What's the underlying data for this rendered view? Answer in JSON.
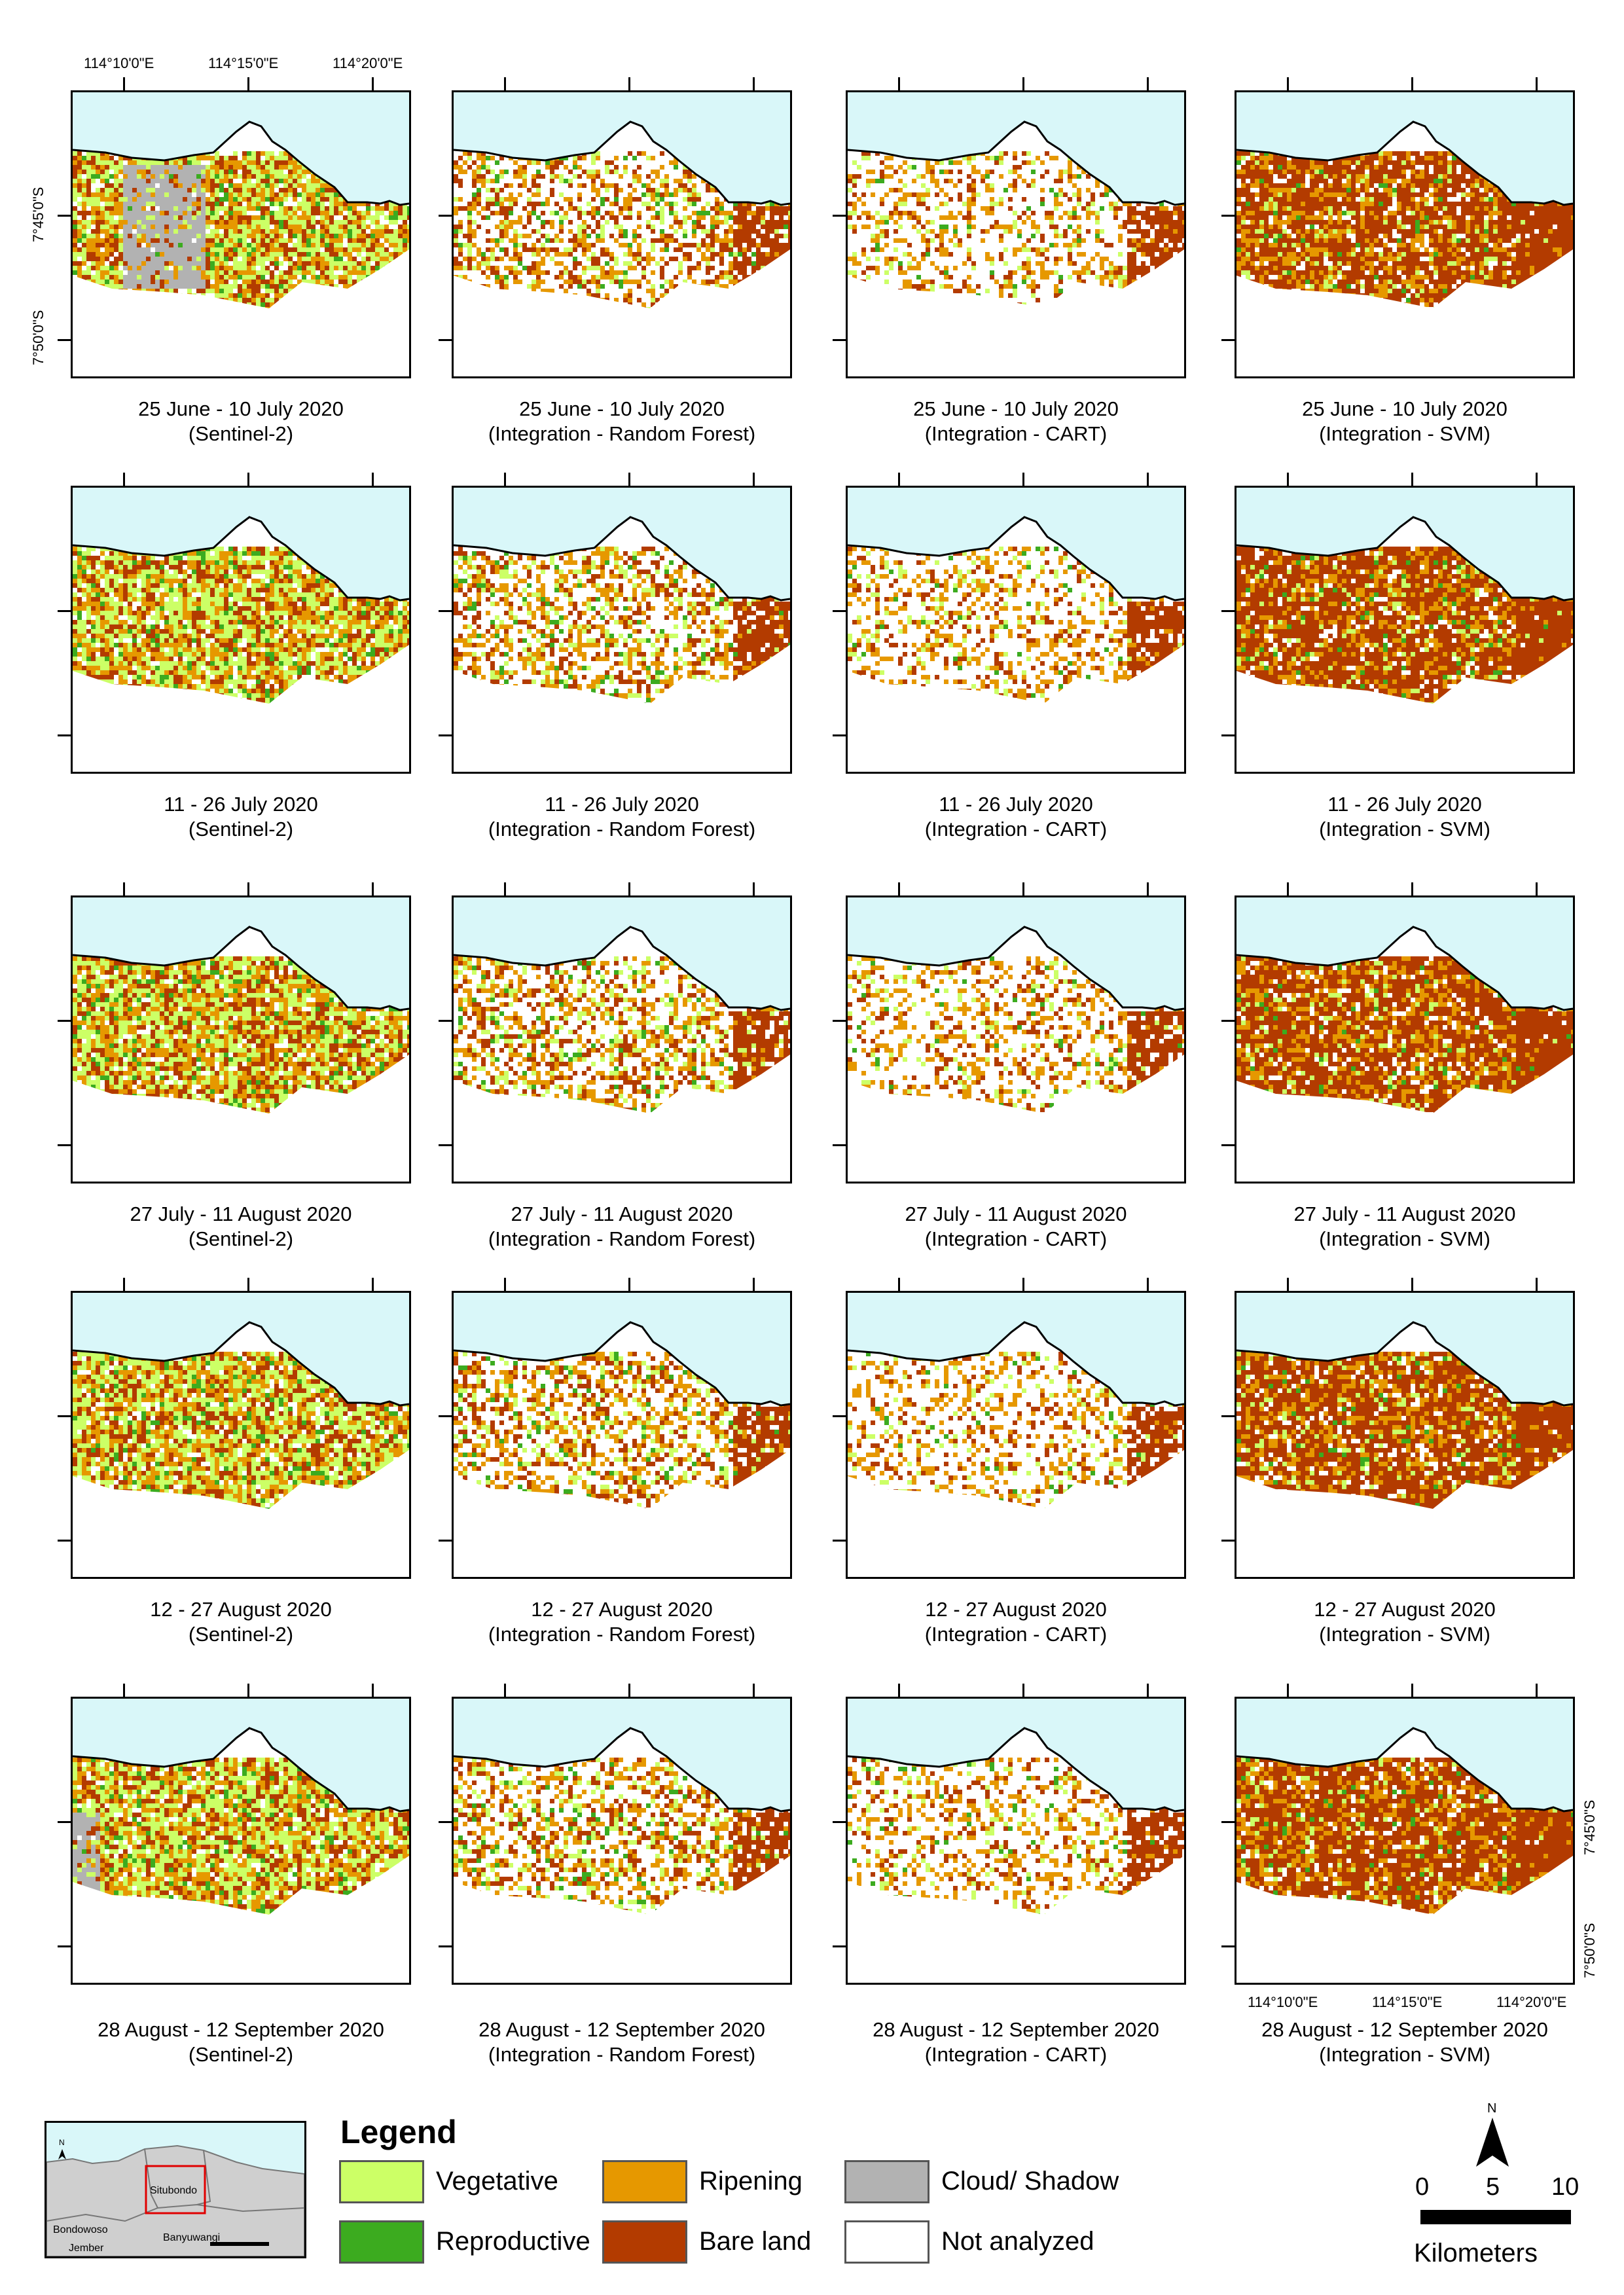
{
  "legend": {
    "title": "Legend",
    "items": [
      {
        "label": "Vegetative",
        "color": "#ccff66"
      },
      {
        "label": "Reproductive",
        "color": "#3cab1f"
      },
      {
        "label": "Ripening",
        "color": "#e69800"
      },
      {
        "label": "Bare land",
        "color": "#b33b00"
      },
      {
        "label": "Cloud/ Shadow",
        "color": "#b2b2b2"
      },
      {
        "label": "Not analyzed",
        "color": "#ffffff"
      }
    ]
  },
  "colors": {
    "sea": "#d9f7f9",
    "cloud": "#b2b2b2"
  },
  "coords": {
    "lon": [
      "114°10'0\"E",
      "114°15'0\"E",
      "114°20'0\"E"
    ],
    "lat": [
      "7°45'0\"S",
      "7°50'0\"S"
    ]
  },
  "inset": {
    "labels": [
      "Situbondo",
      "Bondowoso",
      "Jember",
      "Banyuwangi"
    ],
    "north": "N"
  },
  "north_arrow": "N",
  "scale": {
    "ticks": [
      "0",
      "5",
      "10"
    ],
    "unit": "Kilometers"
  },
  "rows": [
    {
      "period": "25 June - 10 July 2020"
    },
    {
      "period": "11 - 26 July 2020"
    },
    {
      "period": "27 July - 11 August 2020"
    },
    {
      "period": "12 - 27 August 2020"
    },
    {
      "period": "28 August - 12 September 2020"
    }
  ],
  "columns": [
    {
      "method": "(Sentinel-2)"
    },
    {
      "method": "(Integration - Random Forest)"
    },
    {
      "method": "(Integration - CART)"
    },
    {
      "method": "(Integration - SVM)"
    }
  ]
}
